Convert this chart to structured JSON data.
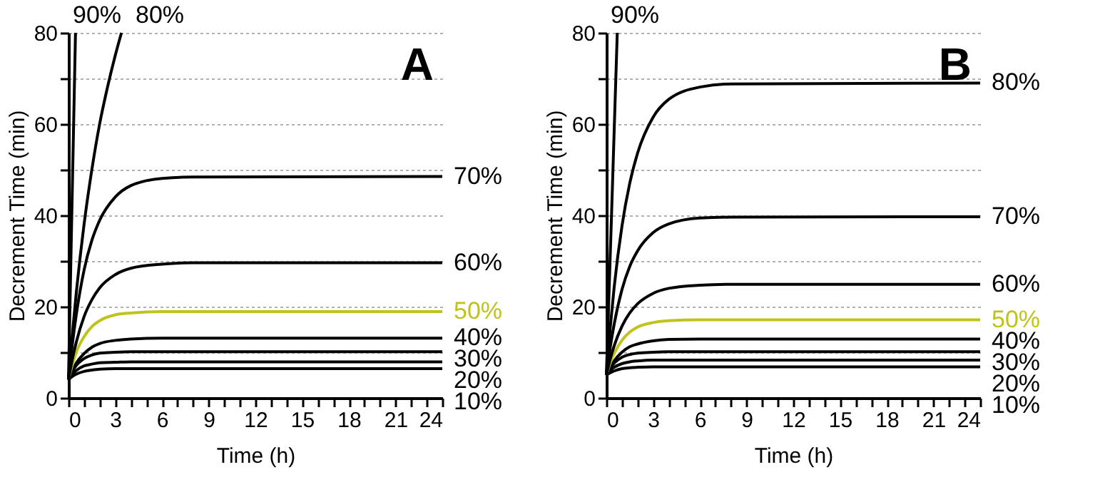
{
  "chart_data": [
    {
      "type": "line",
      "xlabel": "Time (h)",
      "ylabel": "Decrement Time (min)",
      "annotations": [
        "A"
      ],
      "grid": "y",
      "xlim": [
        0,
        24
      ],
      "ylim": [
        0,
        80
      ],
      "xticks": [
        0,
        {
          "value": 1,
          "label": null
        },
        {
          "value": 2,
          "label": null
        },
        3,
        {
          "value": 4,
          "label": null
        },
        {
          "value": 5,
          "label": null
        },
        6,
        {
          "value": 7,
          "label": null
        },
        {
          "value": 8,
          "label": null
        },
        9,
        {
          "value": 10,
          "label": null
        },
        {
          "value": 11,
          "label": null
        },
        12,
        {
          "value": 13,
          "label": null
        },
        {
          "value": 14,
          "label": null
        },
        15,
        {
          "value": 16,
          "label": null
        },
        {
          "value": 17,
          "label": null
        },
        18,
        {
          "value": 19,
          "label": null
        },
        {
          "value": 20,
          "label": null
        },
        21,
        {
          "value": 22,
          "label": null
        },
        {
          "value": 23,
          "label": null
        },
        24
      ],
      "yticks": [
        0,
        {
          "value": 10,
          "label": null
        },
        20,
        {
          "value": 30,
          "label": null
        },
        40,
        {
          "value": 50,
          "label": null
        },
        60,
        {
          "value": 70,
          "label": null
        },
        80
      ],
      "x": [
        0,
        0.25,
        0.5,
        1,
        1.5,
        2,
        3,
        4,
        6,
        8,
        24
      ],
      "series": [
        {
          "name": "10%",
          "color": "#000000",
          "values": [
            4,
            4.7,
            5.2,
            5.8,
            6.1,
            6.3,
            6.4,
            6.4,
            6.4,
            6.4,
            6.4
          ]
        },
        {
          "name": "20%",
          "color": "#000000",
          "values": [
            4,
            5.2,
            6.0,
            7.0,
            7.4,
            7.7,
            7.8,
            7.9,
            7.9,
            7.9,
            7.9
          ]
        },
        {
          "name": "30%",
          "color": "#000000",
          "values": [
            4,
            5.8,
            7.1,
            8.6,
            9.4,
            9.8,
            10.0,
            10.1,
            10.1,
            10.1,
            10.1
          ]
        },
        {
          "name": "40%",
          "color": "#000000",
          "values": [
            4,
            6.0,
            7.6,
            9.7,
            11.1,
            11.9,
            12.6,
            12.9,
            13.1,
            13.1,
            13.1
          ]
        },
        {
          "name": "50%",
          "color": "#bfc31a",
          "values": [
            4,
            7.3,
            10.0,
            13.4,
            15.6,
            16.9,
            18.2,
            18.6,
            18.9,
            18.9,
            18.9
          ]
        },
        {
          "name": "60%",
          "color": "#000000",
          "values": [
            4,
            8.5,
            12.2,
            17.8,
            21.5,
            24.1,
            27.0,
            28.4,
            29.3,
            29.6,
            29.6
          ]
        },
        {
          "name": "70%",
          "color": "#000000",
          "values": [
            4,
            11.8,
            18.2,
            28.0,
            34.5,
            38.9,
            44.0,
            46.5,
            48.1,
            48.4,
            48.5
          ]
        },
        {
          "name": "80%",
          "color": "#000000",
          "x": [
            0,
            0.25,
            0.5,
            1,
            1.5,
            2,
            2.5,
            3,
            3.4
          ],
          "values": [
            4,
            14,
            23,
            38,
            50,
            60,
            68,
            75,
            80
          ]
        },
        {
          "name": "90%",
          "color": "#000000",
          "x": [
            0,
            0.2,
            0.45
          ],
          "values": [
            4,
            38,
            80
          ]
        }
      ]
    },
    {
      "type": "line",
      "xlabel": "Time (h)",
      "ylabel": "Decrement Time (min)",
      "annotations": [
        "B"
      ],
      "grid": "y",
      "xlim": [
        0,
        24
      ],
      "ylim": [
        0,
        80
      ],
      "xticks": [
        0,
        {
          "value": 1,
          "label": null
        },
        {
          "value": 2,
          "label": null
        },
        3,
        {
          "value": 4,
          "label": null
        },
        {
          "value": 5,
          "label": null
        },
        6,
        {
          "value": 7,
          "label": null
        },
        {
          "value": 8,
          "label": null
        },
        9,
        {
          "value": 10,
          "label": null
        },
        {
          "value": 11,
          "label": null
        },
        12,
        {
          "value": 13,
          "label": null
        },
        {
          "value": 14,
          "label": null
        },
        15,
        {
          "value": 16,
          "label": null
        },
        {
          "value": 17,
          "label": null
        },
        18,
        {
          "value": 19,
          "label": null
        },
        {
          "value": 20,
          "label": null
        },
        21,
        {
          "value": 22,
          "label": null
        },
        {
          "value": 23,
          "label": null
        },
        24
      ],
      "yticks": [
        0,
        {
          "value": 10,
          "label": null
        },
        20,
        {
          "value": 30,
          "label": null
        },
        40,
        {
          "value": 50,
          "label": null
        },
        60,
        {
          "value": 70,
          "label": null
        },
        80
      ],
      "x": [
        0,
        0.25,
        0.5,
        1,
        1.5,
        2,
        3,
        4,
        6,
        8,
        24
      ],
      "series": [
        {
          "name": "10%",
          "color": "#000000",
          "values": [
            5,
            5.5,
            5.9,
            6.4,
            6.6,
            6.7,
            6.8,
            6.8,
            6.8,
            6.8,
            6.8
          ]
        },
        {
          "name": "20%",
          "color": "#000000",
          "values": [
            5,
            6.0,
            6.7,
            7.5,
            7.9,
            8.1,
            8.3,
            8.3,
            8.3,
            8.3,
            8.3
          ]
        },
        {
          "name": "30%",
          "color": "#000000",
          "values": [
            5,
            6.5,
            7.6,
            8.9,
            9.5,
            9.8,
            10.0,
            10.1,
            10.1,
            10.1,
            10.1
          ]
        },
        {
          "name": "40%",
          "color": "#000000",
          "values": [
            5,
            6.7,
            8.1,
            10.0,
            11.2,
            11.8,
            12.5,
            12.8,
            12.9,
            12.9,
            12.9
          ]
        },
        {
          "name": "50%",
          "color": "#bfc31a",
          "values": [
            5,
            7.7,
            9.7,
            12.6,
            14.4,
            15.5,
            16.5,
            16.9,
            17.1,
            17.1,
            17.1
          ]
        },
        {
          "name": "60%",
          "color": "#000000",
          "values": [
            5,
            8.5,
            11.4,
            15.7,
            18.6,
            20.6,
            22.9,
            24.0,
            24.7,
            24.9,
            24.9
          ]
        },
        {
          "name": "70%",
          "color": "#000000",
          "values": [
            5,
            11.1,
            16.1,
            23.7,
            28.8,
            32.2,
            36.2,
            38.1,
            39.4,
            39.6,
            39.7
          ]
        },
        {
          "name": "80%",
          "color": "#000000",
          "values": [
            5,
            15.4,
            24.2,
            37.6,
            47.0,
            53.6,
            61.5,
            65.4,
            68.1,
            68.8,
            69.0
          ]
        },
        {
          "name": "90%",
          "color": "#000000",
          "x": [
            0,
            0.35,
            0.7
          ],
          "values": [
            5,
            42,
            80
          ]
        }
      ]
    }
  ]
}
